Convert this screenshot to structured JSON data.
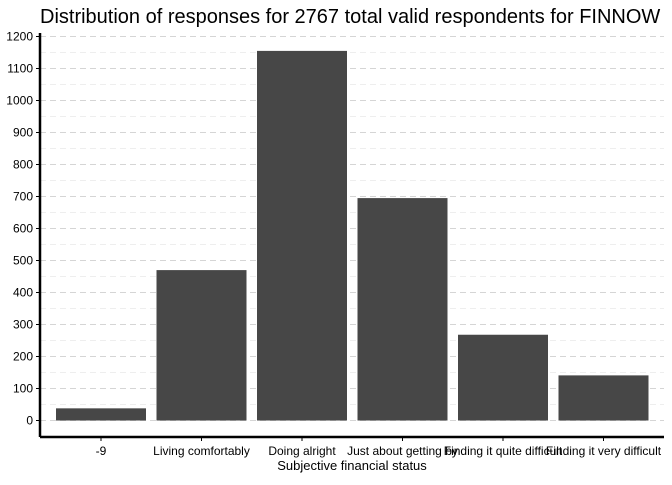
{
  "chart_data": {
    "type": "bar",
    "title": "Distribution of responses for 2767 total valid respondents for FINNOW",
    "xlabel": "Subjective financial status",
    "ylabel": "",
    "categories": [
      "-9",
      "Living comfortably",
      "Doing alright",
      "Just about getting by",
      "Finding it quite difficult",
      "Finding it very difficult"
    ],
    "values": [
      38,
      470,
      1155,
      695,
      268,
      141
    ],
    "ylim": [
      0,
      1200
    ],
    "yticks": [
      0,
      100,
      200,
      300,
      400,
      500,
      600,
      700,
      800,
      900,
      1000,
      1100,
      1200
    ],
    "grid": true,
    "bar_color": "#474747"
  }
}
